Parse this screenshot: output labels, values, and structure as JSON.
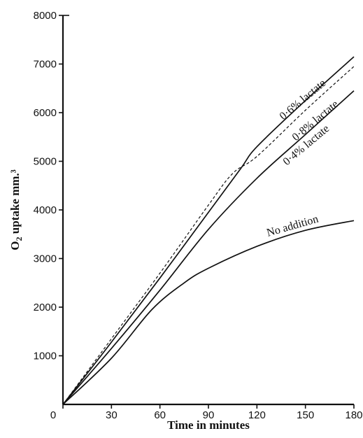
{
  "chart_data": {
    "type": "line",
    "title": "",
    "xlabel": "Time in minutes",
    "ylabel_main": "O",
    "ylabel_sub": "2",
    "ylabel_rest": " uptake mm.³",
    "xlim": [
      0,
      180
    ],
    "ylim": [
      0,
      8000
    ],
    "x_ticks": [
      "0",
      "30",
      "60",
      "90",
      "120",
      "150",
      "180"
    ],
    "y_ticks": [
      "0",
      "1000",
      "2000",
      "3000",
      "4000",
      "5000",
      "6000",
      "7000",
      "8000"
    ],
    "grid": false,
    "legend": "none",
    "series": [
      {
        "name": "0·6% lactate",
        "style": "solid",
        "x": [
          0,
          30,
          60,
          90,
          110,
          120,
          150,
          180
        ],
        "y": [
          0,
          1280,
          2600,
          3950,
          4850,
          5300,
          6250,
          7150
        ]
      },
      {
        "name": "0·8% lactate",
        "style": "dashed",
        "x": [
          0,
          30,
          60,
          90,
          105,
          120,
          150,
          180
        ],
        "y": [
          0,
          1350,
          2700,
          4100,
          4750,
          5100,
          6050,
          6950
        ]
      },
      {
        "name": "0·4% lactate",
        "style": "solid",
        "x": [
          0,
          30,
          60,
          90,
          120,
          150,
          180
        ],
        "y": [
          0,
          1150,
          2350,
          3600,
          4650,
          5550,
          6450
        ]
      },
      {
        "name": "No addition",
        "style": "solid",
        "x": [
          0,
          30,
          55,
          75,
          90,
          120,
          150,
          180
        ],
        "y": [
          0,
          950,
          1950,
          2500,
          2800,
          3250,
          3580,
          3780
        ]
      }
    ]
  }
}
